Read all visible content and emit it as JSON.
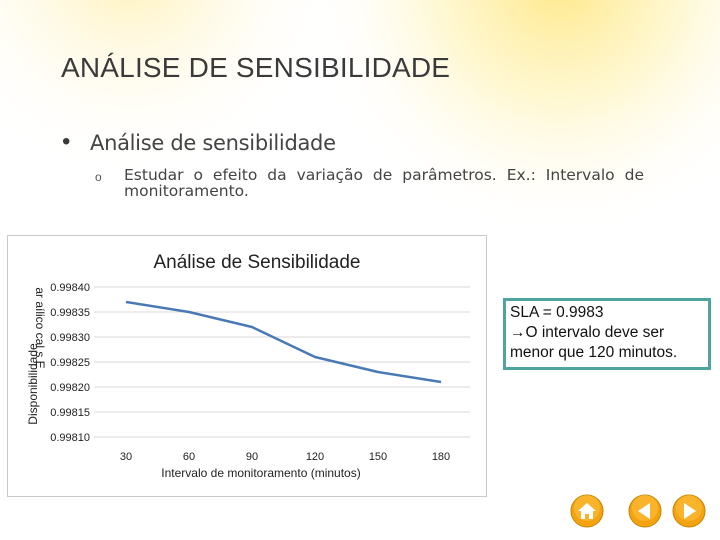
{
  "slide": {
    "title": "ANÁLISE DE SENSIBILIDADE",
    "bullet_level1": "Análise de sensibilidade",
    "bullet_level2": "Estudar o efeito da variação de parâmetros.  Ex.: Intervalo de monitoramento."
  },
  "chart_data": {
    "type": "line",
    "title": "Análise de Sensibilidade",
    "xlabel": "Intervalo de monitoramento (minutos)",
    "ylabel": "Disponibilidade",
    "ylabel_overlay": "ar aílico cal s E",
    "categories": [
      "30",
      "60",
      "90",
      "120",
      "150",
      "180"
    ],
    "series": [
      {
        "values": [
          0.99837,
          0.99835,
          0.99832,
          0.99826,
          0.99823,
          0.99821
        ],
        "color": "#4a7ab5"
      }
    ],
    "y_ticks": [
      "0.99840",
      "0.99835",
      "0.99830",
      "0.99825",
      "0.99820",
      "0.99815",
      "0.99810"
    ],
    "ylim": [
      0.9981,
      0.9984
    ],
    "grid": true
  },
  "sla_note": {
    "line1": "SLA = 0.9983",
    "line2": "→O intervalo deve ser",
    "line3": "menor que 120 minutos."
  },
  "nav": {
    "home_icon": "home-icon",
    "back_icon": "back-arrow-icon",
    "forward_icon": "forward-arrow-icon",
    "color": "#f2a30f"
  }
}
